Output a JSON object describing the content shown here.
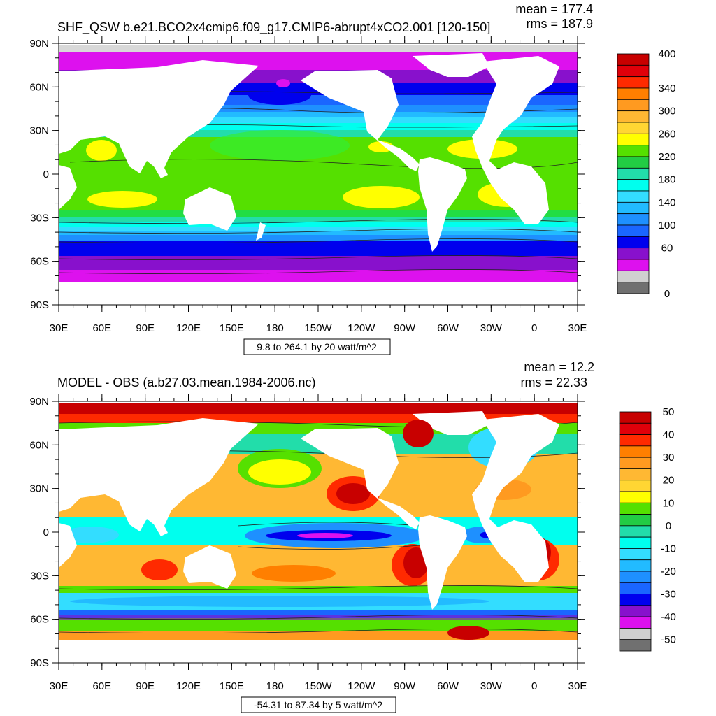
{
  "axes": {
    "lat_labels": [
      "90N",
      "60N",
      "30N",
      "0",
      "30S",
      "60S",
      "90S"
    ],
    "lon_labels": [
      "30E",
      "60E",
      "90E",
      "120E",
      "150E",
      "180",
      "150W",
      "120W",
      "90W",
      "60W",
      "30W",
      "0",
      "30E"
    ]
  },
  "panels": [
    {
      "title": "SHF_QSW b.e21.BCO2x4cmip6.f09_g17.CMIP6-abrupt4xCO2.001 [120-150]",
      "mean_text": "mean = 177.4",
      "rms_text": "rms = 187.9",
      "range_text": "9.8 to 264.1 by 20 watt/m^2",
      "colorbar": {
        "labels": [
          "400",
          "340",
          "300",
          "260",
          "220",
          "180",
          "140",
          "100",
          "60",
          "0"
        ],
        "colors": [
          "#c80000",
          "#e0000a",
          "#ff2a00",
          "#ff7f00",
          "#ff9a20",
          "#ffb833",
          "#ffd633",
          "#ffff00",
          "#55e000",
          "#22cc44",
          "#22ddaa",
          "#00ffee",
          "#33ddff",
          "#22bbff",
          "#1e90ff",
          "#1a66ff",
          "#0000ee",
          "#8811cc",
          "#dd11ee",
          "#d0d0d0",
          "#707070"
        ]
      }
    },
    {
      "title": "MODEL - OBS (a.b27.03.mean.1984-2006.nc)",
      "mean_text": "mean = 12.2",
      "rms_text": "rms = 22.33",
      "range_text": "-54.31 to 87.34 by 5 watt/m^2",
      "colorbar": {
        "labels": [
          "50",
          "40",
          "30",
          "20",
          "10",
          "0",
          "-10",
          "-20",
          "-30",
          "-40",
          "-50"
        ],
        "colors": [
          "#c80000",
          "#e0000a",
          "#ff2a00",
          "#ff7f00",
          "#ff9a20",
          "#ffb833",
          "#ffd633",
          "#ffff00",
          "#55e000",
          "#22cc44",
          "#22ddaa",
          "#00ffee",
          "#33ddff",
          "#22bbff",
          "#1e90ff",
          "#1a66ff",
          "#0000ee",
          "#8811cc",
          "#dd11ee",
          "#d0d0d0",
          "#707070"
        ]
      }
    }
  ]
}
